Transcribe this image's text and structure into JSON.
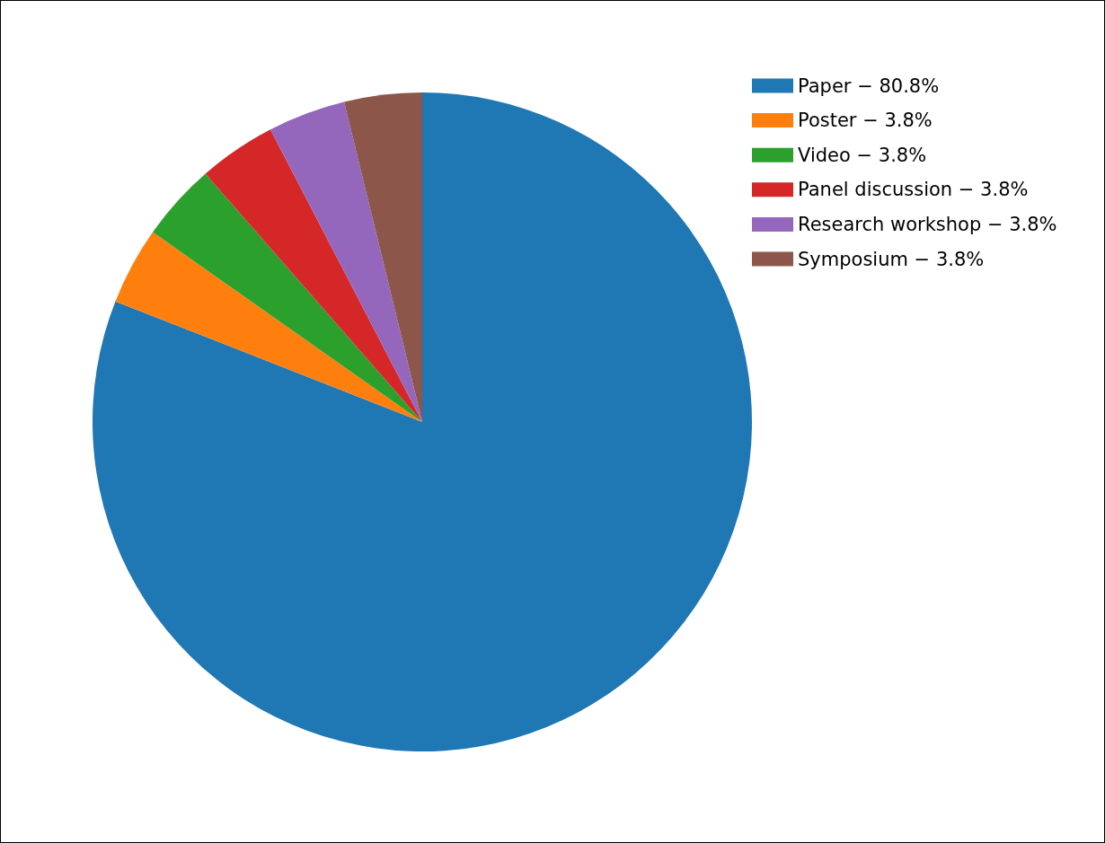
{
  "chart_data": {
    "type": "pie",
    "categories": [
      "Paper − 80.8%",
      "Poster − 3.8%",
      "Video − 3.8%",
      "Panel discussion − 3.8%",
      "Research workshop − 3.8%",
      "Symposium − 3.8%"
    ],
    "values": [
      80.8,
      3.8,
      3.8,
      3.8,
      3.8,
      3.8
    ],
    "colors": [
      "#1f77b4",
      "#ff7f0e",
      "#2ca02c",
      "#d62728",
      "#9467bd",
      "#8c564b"
    ],
    "legend": "top right"
  }
}
